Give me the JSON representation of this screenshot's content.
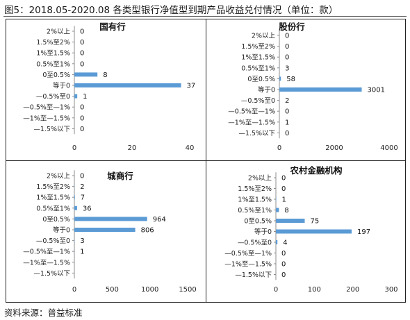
{
  "figure": {
    "title": "图5：2018.05-2020.08 各类型银行净值型到期产品收益兑付情况（单位：款）",
    "source": "资料来源：普益标准",
    "bar_color": "#5b9bd5",
    "axis_color": "#8c8c8c"
  },
  "chart_data": [
    {
      "type": "bar",
      "orientation": "horizontal",
      "title": "国有行",
      "categories": [
        "2%以上",
        "1.5%至2%",
        "1%至1.5%",
        "0.5%至1%",
        "0至0.5%",
        "等于0",
        "—0.5%至0",
        "—0.5%至—1%",
        "—1%至—1.5%",
        "—1.5%以下"
      ],
      "values": [
        0,
        0,
        0,
        0,
        8,
        37,
        1,
        0,
        0,
        0
      ],
      "xlim": [
        0,
        40
      ],
      "xticks": [
        "0",
        "20",
        "40"
      ]
    },
    {
      "type": "bar",
      "orientation": "horizontal",
      "title": "股份行",
      "categories": [
        "2%以上",
        "1.5%至2%",
        "1%至1.5%",
        "0.5%至1%",
        "0至0.5%",
        "等于0",
        "—0.5%至0",
        "—0.5%至—1%",
        "—1%至—1.5%",
        "—1.5%以下"
      ],
      "values": [
        0,
        0,
        0,
        3,
        58,
        3001,
        2,
        0,
        1,
        0
      ],
      "xlim": [
        0,
        4000
      ],
      "xticks": [
        "0",
        "2000",
        "4000"
      ]
    },
    {
      "type": "bar",
      "orientation": "horizontal",
      "title": "城商行",
      "categories": [
        "2%以上",
        "1.5%至2%",
        "1%至1.5%",
        "0.5%至1%",
        "0至0.5%",
        "等于0",
        "—0.5%至0",
        "—0.5%至—1%",
        "—1%至—1.5%",
        "—1.5%以下"
      ],
      "values": [
        0,
        2,
        7,
        36,
        964,
        806,
        3,
        1,
        null,
        null
      ],
      "xlim": [
        0,
        1500
      ],
      "xticks": [
        "0",
        "500",
        "1000",
        "1500"
      ]
    },
    {
      "type": "bar",
      "orientation": "horizontal",
      "title": "农村金融机构",
      "categories": [
        "2%以上",
        "1.5%至2%",
        "1%至1.5%",
        "0.5%至1%",
        "0至0.5%",
        "等于0",
        "—0.5%至0",
        "—0.5%至—1%",
        "—1%至—1.5%",
        "—1.5%以下"
      ],
      "values": [
        0,
        0,
        1,
        8,
        75,
        197,
        4,
        0,
        0,
        0
      ],
      "xlim": [
        0,
        300
      ],
      "xticks": [
        "0",
        "100",
        "200",
        "300"
      ]
    }
  ]
}
